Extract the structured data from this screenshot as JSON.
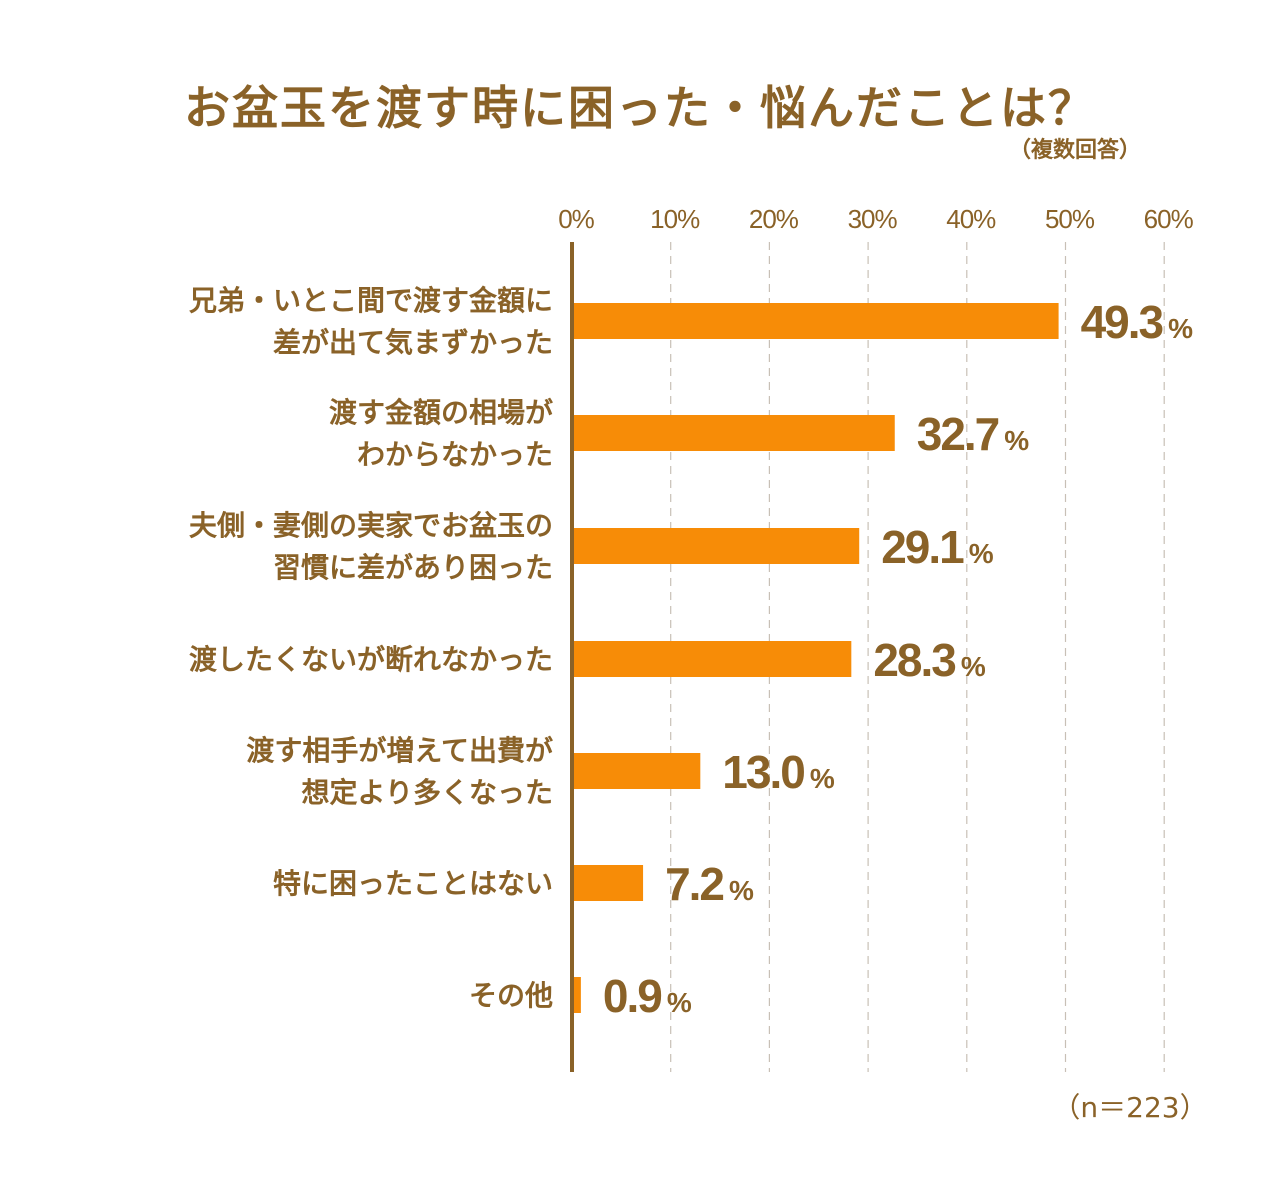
{
  "title": "お盆玉を渡す時に困った・悩んだことは？",
  "subtitle": "（複数回答）",
  "note": "（n＝223）",
  "colors": {
    "bar": "#f78c07",
    "text": "#8a6228",
    "axis": "#8a6228",
    "grid": "#c8c0b6"
  },
  "chart_data": {
    "type": "bar",
    "orientation": "horizontal",
    "unit": "%",
    "xlim": [
      0,
      60
    ],
    "xticks": [
      0,
      10,
      20,
      30,
      40,
      50,
      60
    ],
    "xtick_labels": [
      "0%",
      "10%",
      "20%",
      "30%",
      "40%",
      "50%",
      "60%"
    ],
    "grid": true,
    "categories": [
      [
        "兄弟・いとこ間で渡す金額に",
        "差が出て気まずかった"
      ],
      [
        "渡す金額の相場が",
        "わからなかった"
      ],
      [
        "夫側・妻側の実家でお盆玉の",
        "習慣に差があり困った"
      ],
      [
        "渡したくないが断れなかった"
      ],
      [
        "渡す相手が増えて出費が",
        "想定より多くなった"
      ],
      [
        "特に困ったことはない"
      ],
      [
        "その他"
      ]
    ],
    "values": [
      49.3,
      32.7,
      29.1,
      28.3,
      13.0,
      7.2,
      0.9
    ],
    "value_labels": [
      "49.3",
      "32.7",
      "29.1",
      "28.3",
      "13.0",
      "7.2",
      "0.9"
    ]
  }
}
